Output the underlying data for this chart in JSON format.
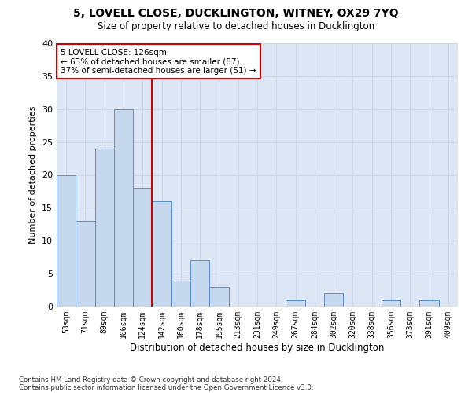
{
  "title": "5, LOVELL CLOSE, DUCKLINGTON, WITNEY, OX29 7YQ",
  "subtitle": "Size of property relative to detached houses in Ducklington",
  "xlabel": "Distribution of detached houses by size in Ducklington",
  "ylabel": "Number of detached properties",
  "categories": [
    "53sqm",
    "71sqm",
    "89sqm",
    "106sqm",
    "124sqm",
    "142sqm",
    "160sqm",
    "178sqm",
    "195sqm",
    "213sqm",
    "231sqm",
    "249sqm",
    "267sqm",
    "284sqm",
    "302sqm",
    "320sqm",
    "338sqm",
    "356sqm",
    "373sqm",
    "391sqm",
    "409sqm"
  ],
  "values": [
    20,
    13,
    24,
    30,
    18,
    16,
    4,
    7,
    3,
    0,
    0,
    0,
    1,
    0,
    2,
    0,
    0,
    1,
    0,
    1,
    0
  ],
  "bar_color": "#c5d8ed",
  "bar_edge_color": "#5b8fc9",
  "highlight_bar_index": 4,
  "highlight_line_color": "#cc0000",
  "annotation_line1": "5 LOVELL CLOSE: 126sqm",
  "annotation_line2": "← 63% of detached houses are smaller (87)",
  "annotation_line3": "37% of semi-detached houses are larger (51) →",
  "annotation_box_color": "#ffffff",
  "annotation_box_edge_color": "#cc0000",
  "ylim": [
    0,
    40
  ],
  "yticks": [
    0,
    5,
    10,
    15,
    20,
    25,
    30,
    35,
    40
  ],
  "grid_color": "#cdd6e8",
  "background_color": "#dce6f5",
  "footnote1": "Contains HM Land Registry data © Crown copyright and database right 2024.",
  "footnote2": "Contains public sector information licensed under the Open Government Licence v3.0."
}
